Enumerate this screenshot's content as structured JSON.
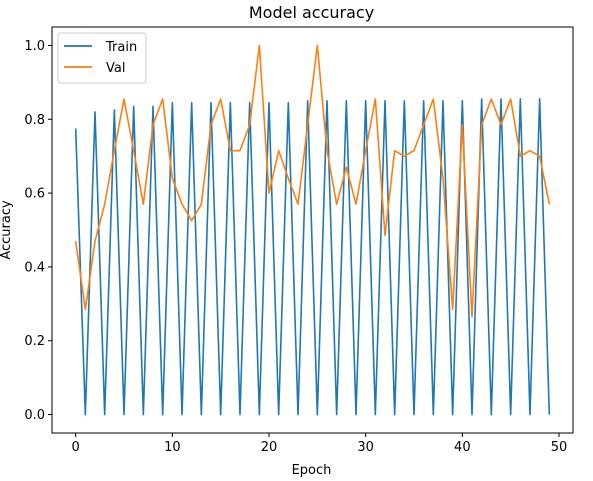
{
  "chart_data": {
    "type": "line",
    "title": "Model accuracy",
    "xlabel": "Epoch",
    "ylabel": "Accuracy",
    "xlim": [
      -2.45,
      51.45
    ],
    "ylim": [
      -0.05,
      1.05
    ],
    "xticks": [
      0,
      10,
      20,
      30,
      40,
      50
    ],
    "xtick_labels": [
      "0",
      "10",
      "20",
      "30",
      "40",
      "50"
    ],
    "yticks": [
      0.0,
      0.2,
      0.4,
      0.6,
      0.8,
      1.0
    ],
    "ytick_labels": [
      "0.0",
      "0.2",
      "0.4",
      "0.6",
      "0.8",
      "1.0"
    ],
    "legend_position": "top-left",
    "series": [
      {
        "name": "Train",
        "color": "#1f77b4",
        "x": [
          0,
          1,
          2,
          3,
          4,
          5,
          6,
          7,
          8,
          9,
          10,
          11,
          12,
          13,
          14,
          15,
          16,
          17,
          18,
          19,
          20,
          21,
          22,
          23,
          24,
          25,
          26,
          27,
          28,
          29,
          30,
          31,
          32,
          33,
          34,
          35,
          36,
          37,
          38,
          39,
          40,
          41,
          42,
          43,
          44,
          45,
          46,
          47,
          48,
          49
        ],
        "values": [
          0.775,
          0.0,
          0.82,
          0.0,
          0.825,
          0.0,
          0.835,
          0.0,
          0.835,
          0.0,
          0.845,
          0.0,
          0.845,
          0.0,
          0.845,
          0.0,
          0.845,
          0.0,
          0.845,
          0.0,
          0.845,
          0.0,
          0.845,
          0.0,
          0.85,
          0.0,
          0.85,
          0.0,
          0.85,
          0.0,
          0.85,
          0.0,
          0.85,
          0.0,
          0.85,
          0.0,
          0.85,
          0.0,
          0.85,
          0.0,
          0.85,
          0.0,
          0.855,
          0.0,
          0.855,
          0.0,
          0.855,
          0.0,
          0.855,
          0.0
        ]
      },
      {
        "name": "Val",
        "color": "#ff7f0e",
        "x": [
          0,
          1,
          2,
          3,
          4,
          5,
          6,
          7,
          8,
          9,
          10,
          11,
          12,
          13,
          14,
          15,
          16,
          17,
          18,
          19,
          20,
          21,
          22,
          23,
          24,
          25,
          26,
          27,
          28,
          29,
          30,
          31,
          32,
          33,
          34,
          35,
          36,
          37,
          38,
          39,
          40,
          41,
          42,
          43,
          44,
          45,
          46,
          47,
          48,
          49
        ],
        "values": [
          0.47,
          0.285,
          0.47,
          0.57,
          0.715,
          0.855,
          0.715,
          0.57,
          0.785,
          0.855,
          0.64,
          0.57,
          0.525,
          0.57,
          0.785,
          0.855,
          0.715,
          0.715,
          0.785,
          1.0,
          0.6,
          0.715,
          0.64,
          0.57,
          0.785,
          1.0,
          0.715,
          0.57,
          0.67,
          0.57,
          0.715,
          0.855,
          0.485,
          0.715,
          0.7,
          0.715,
          0.785,
          0.855,
          0.64,
          0.285,
          0.785,
          0.265,
          0.785,
          0.855,
          0.785,
          0.855,
          0.7,
          0.715,
          0.7,
          0.57
        ]
      }
    ]
  }
}
